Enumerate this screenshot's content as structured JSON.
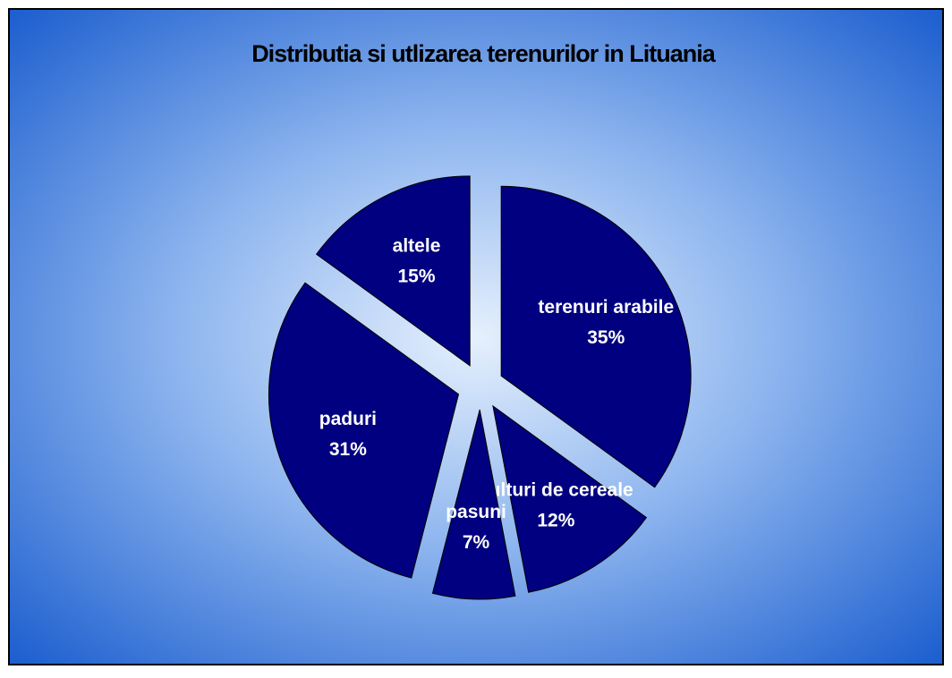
{
  "chart_data": {
    "type": "pie",
    "title": "Distributia si utlizarea terenurilor in Lituania",
    "categories": [
      "terenuri arabile",
      "culturi de cereale",
      "pasuni",
      "paduri",
      "altele"
    ],
    "values": [
      35,
      12,
      7,
      31,
      15
    ],
    "value_labels": [
      "35%",
      "12%",
      "7%",
      "31%",
      "15%"
    ],
    "color": "#000080"
  }
}
